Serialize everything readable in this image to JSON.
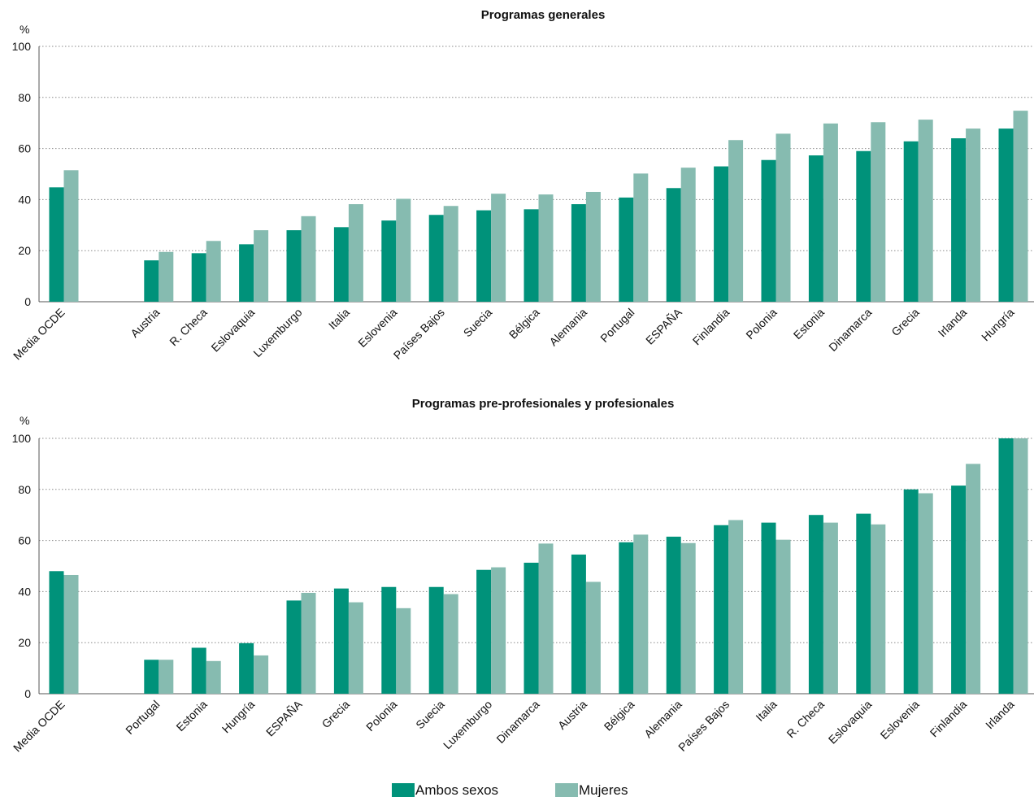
{
  "colors": {
    "ambos": "#00927a",
    "mujeres": "#86bbb0"
  },
  "legend": {
    "ambos_label": "Ambos sexos",
    "mujeres_label": "Mujeres"
  },
  "chart_data": [
    {
      "type": "bar",
      "title": "Programas generales",
      "unit_label": "%",
      "ylim": [
        0,
        100
      ],
      "yticks": [
        0,
        20,
        40,
        60,
        80,
        100
      ],
      "grid": true,
      "categories": [
        "Media OCDE",
        "",
        "Austria",
        "R. Checa",
        "Eslovaquia",
        "Luxemburgo",
        "Italia",
        "Eslovenia",
        "Países Bajos",
        "Suecia",
        "Bélgica",
        "Alemania",
        "Portugal",
        "ESPAÑA",
        "Finlandia",
        "Polonia",
        "Estonia",
        "Dinamarca",
        "Grecia",
        "Irlanda",
        "Hungría"
      ],
      "series": [
        {
          "name": "Ambos sexos",
          "values": [
            44.8,
            null,
            16.2,
            19.0,
            22.5,
            28.0,
            29.2,
            31.8,
            34.0,
            35.8,
            36.2,
            38.2,
            40.8,
            44.5,
            53.0,
            55.5,
            57.3,
            59.0,
            62.8,
            64.0,
            67.8
          ]
        },
        {
          "name": "Mujeres",
          "values": [
            51.5,
            null,
            19.5,
            23.8,
            28.0,
            33.5,
            38.2,
            40.3,
            37.5,
            42.3,
            42.0,
            43.0,
            50.2,
            52.5,
            63.3,
            65.8,
            69.8,
            70.3,
            71.3,
            67.8,
            74.8
          ]
        }
      ]
    },
    {
      "type": "bar",
      "title": "Programas pre-profesionales y profesionales",
      "unit_label": "%",
      "ylim": [
        0,
        100
      ],
      "yticks": [
        0,
        20,
        40,
        60,
        80,
        100
      ],
      "grid": true,
      "categories": [
        "Media OCDE",
        "",
        "Portugal",
        "Estonia",
        "Hungría",
        "ESPAÑA",
        "Grecia",
        "Polonia",
        "Suecia",
        "Luxemburgo",
        "Dinamarca",
        "Austria",
        "Bélgica",
        "Alemania",
        "Países Bajos",
        "Italia",
        "R. Checa",
        "Eslovaquia",
        "Eslovenia",
        "Finlandia",
        "Irlanda"
      ],
      "series": [
        {
          "name": "Ambos sexos",
          "values": [
            48.0,
            null,
            13.3,
            18.0,
            19.8,
            36.5,
            41.2,
            41.8,
            41.8,
            48.5,
            51.3,
            54.5,
            59.3,
            61.5,
            66.0,
            67.0,
            70.0,
            70.5,
            80.0,
            81.5,
            100.0
          ]
        },
        {
          "name": "Mujeres",
          "values": [
            46.5,
            null,
            13.3,
            12.8,
            15.0,
            39.5,
            35.8,
            33.5,
            39.0,
            49.5,
            58.8,
            43.8,
            62.3,
            59.0,
            68.0,
            60.3,
            67.0,
            66.3,
            78.5,
            90.0,
            100.0
          ]
        }
      ]
    }
  ]
}
